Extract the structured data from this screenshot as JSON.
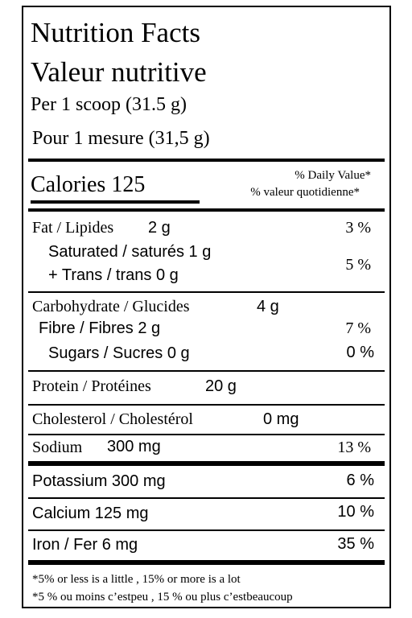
{
  "header": {
    "title_en": "Nutrition Facts",
    "title_fr": "Valeur nutritive",
    "serving_en": "Per 1 scoop (31.5 g)",
    "serving_fr": "Pour 1 mesure (31,5 g)"
  },
  "calories": {
    "label": "Calories",
    "value": "125",
    "dv_header_en": "% Daily Value*",
    "dv_header_fr": "% valeur quotidienne*"
  },
  "nutrients": {
    "fat": {
      "label": "Fat / Lipides",
      "amount": "2 g",
      "dv": "3 %"
    },
    "saturated": {
      "label": "Saturated / saturés 1 g"
    },
    "trans": {
      "label": "+ Trans / trans 0 g",
      "dv": "5 %"
    },
    "carbohydrate": {
      "label": "Carbohydrate / Glucides",
      "amount": "4 g"
    },
    "fibre": {
      "label": "Fibre / Fibres 2 g",
      "dv": "7 %"
    },
    "sugars": {
      "label": "Sugars / Sucres 0 g",
      "dv": "0 %"
    },
    "protein": {
      "label": "Protein / Protéines",
      "amount": "20 g"
    },
    "cholesterol": {
      "label": "Cholesterol / Cholestérol",
      "amount": "0 mg"
    },
    "sodium": {
      "label": "Sodium",
      "amount": "300 mg",
      "dv": "13 %"
    }
  },
  "minerals": {
    "potassium": {
      "label": "Potassium 300 mg",
      "dv": "6 %"
    },
    "calcium": {
      "label": "Calcium 125 mg",
      "dv": "10 %"
    },
    "iron": {
      "label": "Iron / Fer 6 mg",
      "dv": "35 %"
    }
  },
  "footnote": {
    "line_en": "*5% or less is a little  , 15% or more is a lot",
    "line_fr": "*5 % ou moins c’estpeu , 15 % ou plus c’estbeaucoup"
  }
}
